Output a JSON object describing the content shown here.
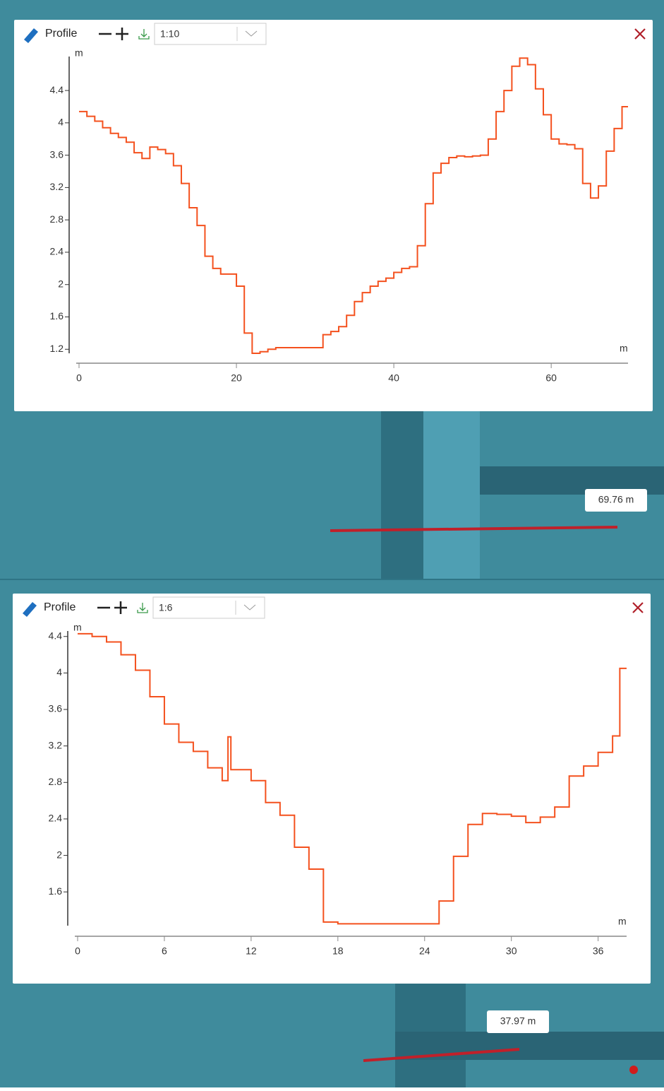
{
  "panels": [
    {
      "title": "Profile",
      "scale": "1:10",
      "measure": "69.76 m"
    },
    {
      "title": "Profile",
      "scale": "1:6",
      "measure": "37.97 m"
    }
  ],
  "chart_data": [
    {
      "type": "line",
      "step": true,
      "color": "#f4511e",
      "x_label": "m",
      "y_label": "m",
      "x": [
        0,
        1,
        2,
        3,
        4,
        5,
        6,
        7,
        8,
        9,
        10,
        11,
        12,
        13,
        14,
        15,
        16,
        17,
        18,
        19,
        20,
        21,
        22,
        23,
        24,
        25,
        26,
        27,
        28,
        29,
        30,
        31,
        32,
        33,
        34,
        35,
        36,
        37,
        38,
        39,
        40,
        41,
        42,
        43,
        44,
        45,
        46,
        47,
        48,
        49,
        50,
        51,
        52,
        53,
        54,
        55,
        56,
        57,
        58,
        59,
        60,
        61,
        62,
        63,
        64,
        65,
        66,
        67,
        68,
        69
      ],
      "values": [
        4.14,
        4.08,
        4.02,
        3.94,
        3.87,
        3.82,
        3.76,
        3.63,
        3.56,
        3.7,
        3.67,
        3.62,
        3.47,
        3.25,
        2.95,
        2.73,
        2.35,
        2.2,
        2.13,
        2.13,
        1.98,
        1.4,
        1.15,
        1.17,
        1.2,
        1.22,
        1.22,
        1.22,
        1.22,
        1.22,
        1.22,
        1.38,
        1.42,
        1.48,
        1.62,
        1.79,
        1.9,
        1.98,
        2.04,
        2.08,
        2.15,
        2.2,
        2.22,
        2.48,
        3.0,
        3.38,
        3.5,
        3.57,
        3.59,
        3.58,
        3.59,
        3.6,
        3.8,
        4.14,
        4.4,
        4.7,
        4.8,
        4.72,
        4.42,
        4.1,
        3.8,
        3.74,
        3.73,
        3.68,
        3.25,
        3.07,
        3.22,
        3.65,
        3.93,
        4.2
      ],
      "xlim": [
        0,
        69.76
      ],
      "ylim": [
        1.15,
        4.82
      ],
      "xticks": [
        0,
        20,
        40,
        60
      ],
      "yticks": [
        1.2,
        1.6,
        2,
        2.4,
        2.8,
        3.2,
        3.6,
        4,
        4.4
      ]
    },
    {
      "type": "line",
      "step": true,
      "color": "#f4511e",
      "x_label": "m",
      "y_label": "m",
      "x": [
        0,
        1,
        2,
        3,
        4,
        5,
        6,
        7,
        8,
        9,
        10,
        10.4,
        10.6,
        11,
        12,
        13,
        14,
        15,
        16,
        17,
        18,
        19,
        20,
        21,
        22,
        23,
        24,
        25,
        26,
        27,
        28,
        29,
        30,
        31,
        32,
        33,
        34,
        35,
        36,
        37,
        37.5
      ],
      "values": [
        4.43,
        4.4,
        4.34,
        4.2,
        4.03,
        3.74,
        3.44,
        3.24,
        3.14,
        2.96,
        2.82,
        3.3,
        2.94,
        2.94,
        2.82,
        2.58,
        2.44,
        2.09,
        1.85,
        1.27,
        1.25,
        1.25,
        1.25,
        1.25,
        1.25,
        1.25,
        1.25,
        1.5,
        1.99,
        2.34,
        2.46,
        2.45,
        2.43,
        2.36,
        2.42,
        2.53,
        2.87,
        2.98,
        3.13,
        3.31,
        4.05
      ],
      "xlim": [
        0,
        37.97
      ],
      "ylim": [
        1.23,
        4.46
      ],
      "xticks": [
        0,
        6,
        12,
        18,
        24,
        30,
        36
      ],
      "yticks": [
        1.6,
        2,
        2.4,
        2.8,
        3.2,
        3.6,
        4,
        4.4
      ]
    }
  ]
}
